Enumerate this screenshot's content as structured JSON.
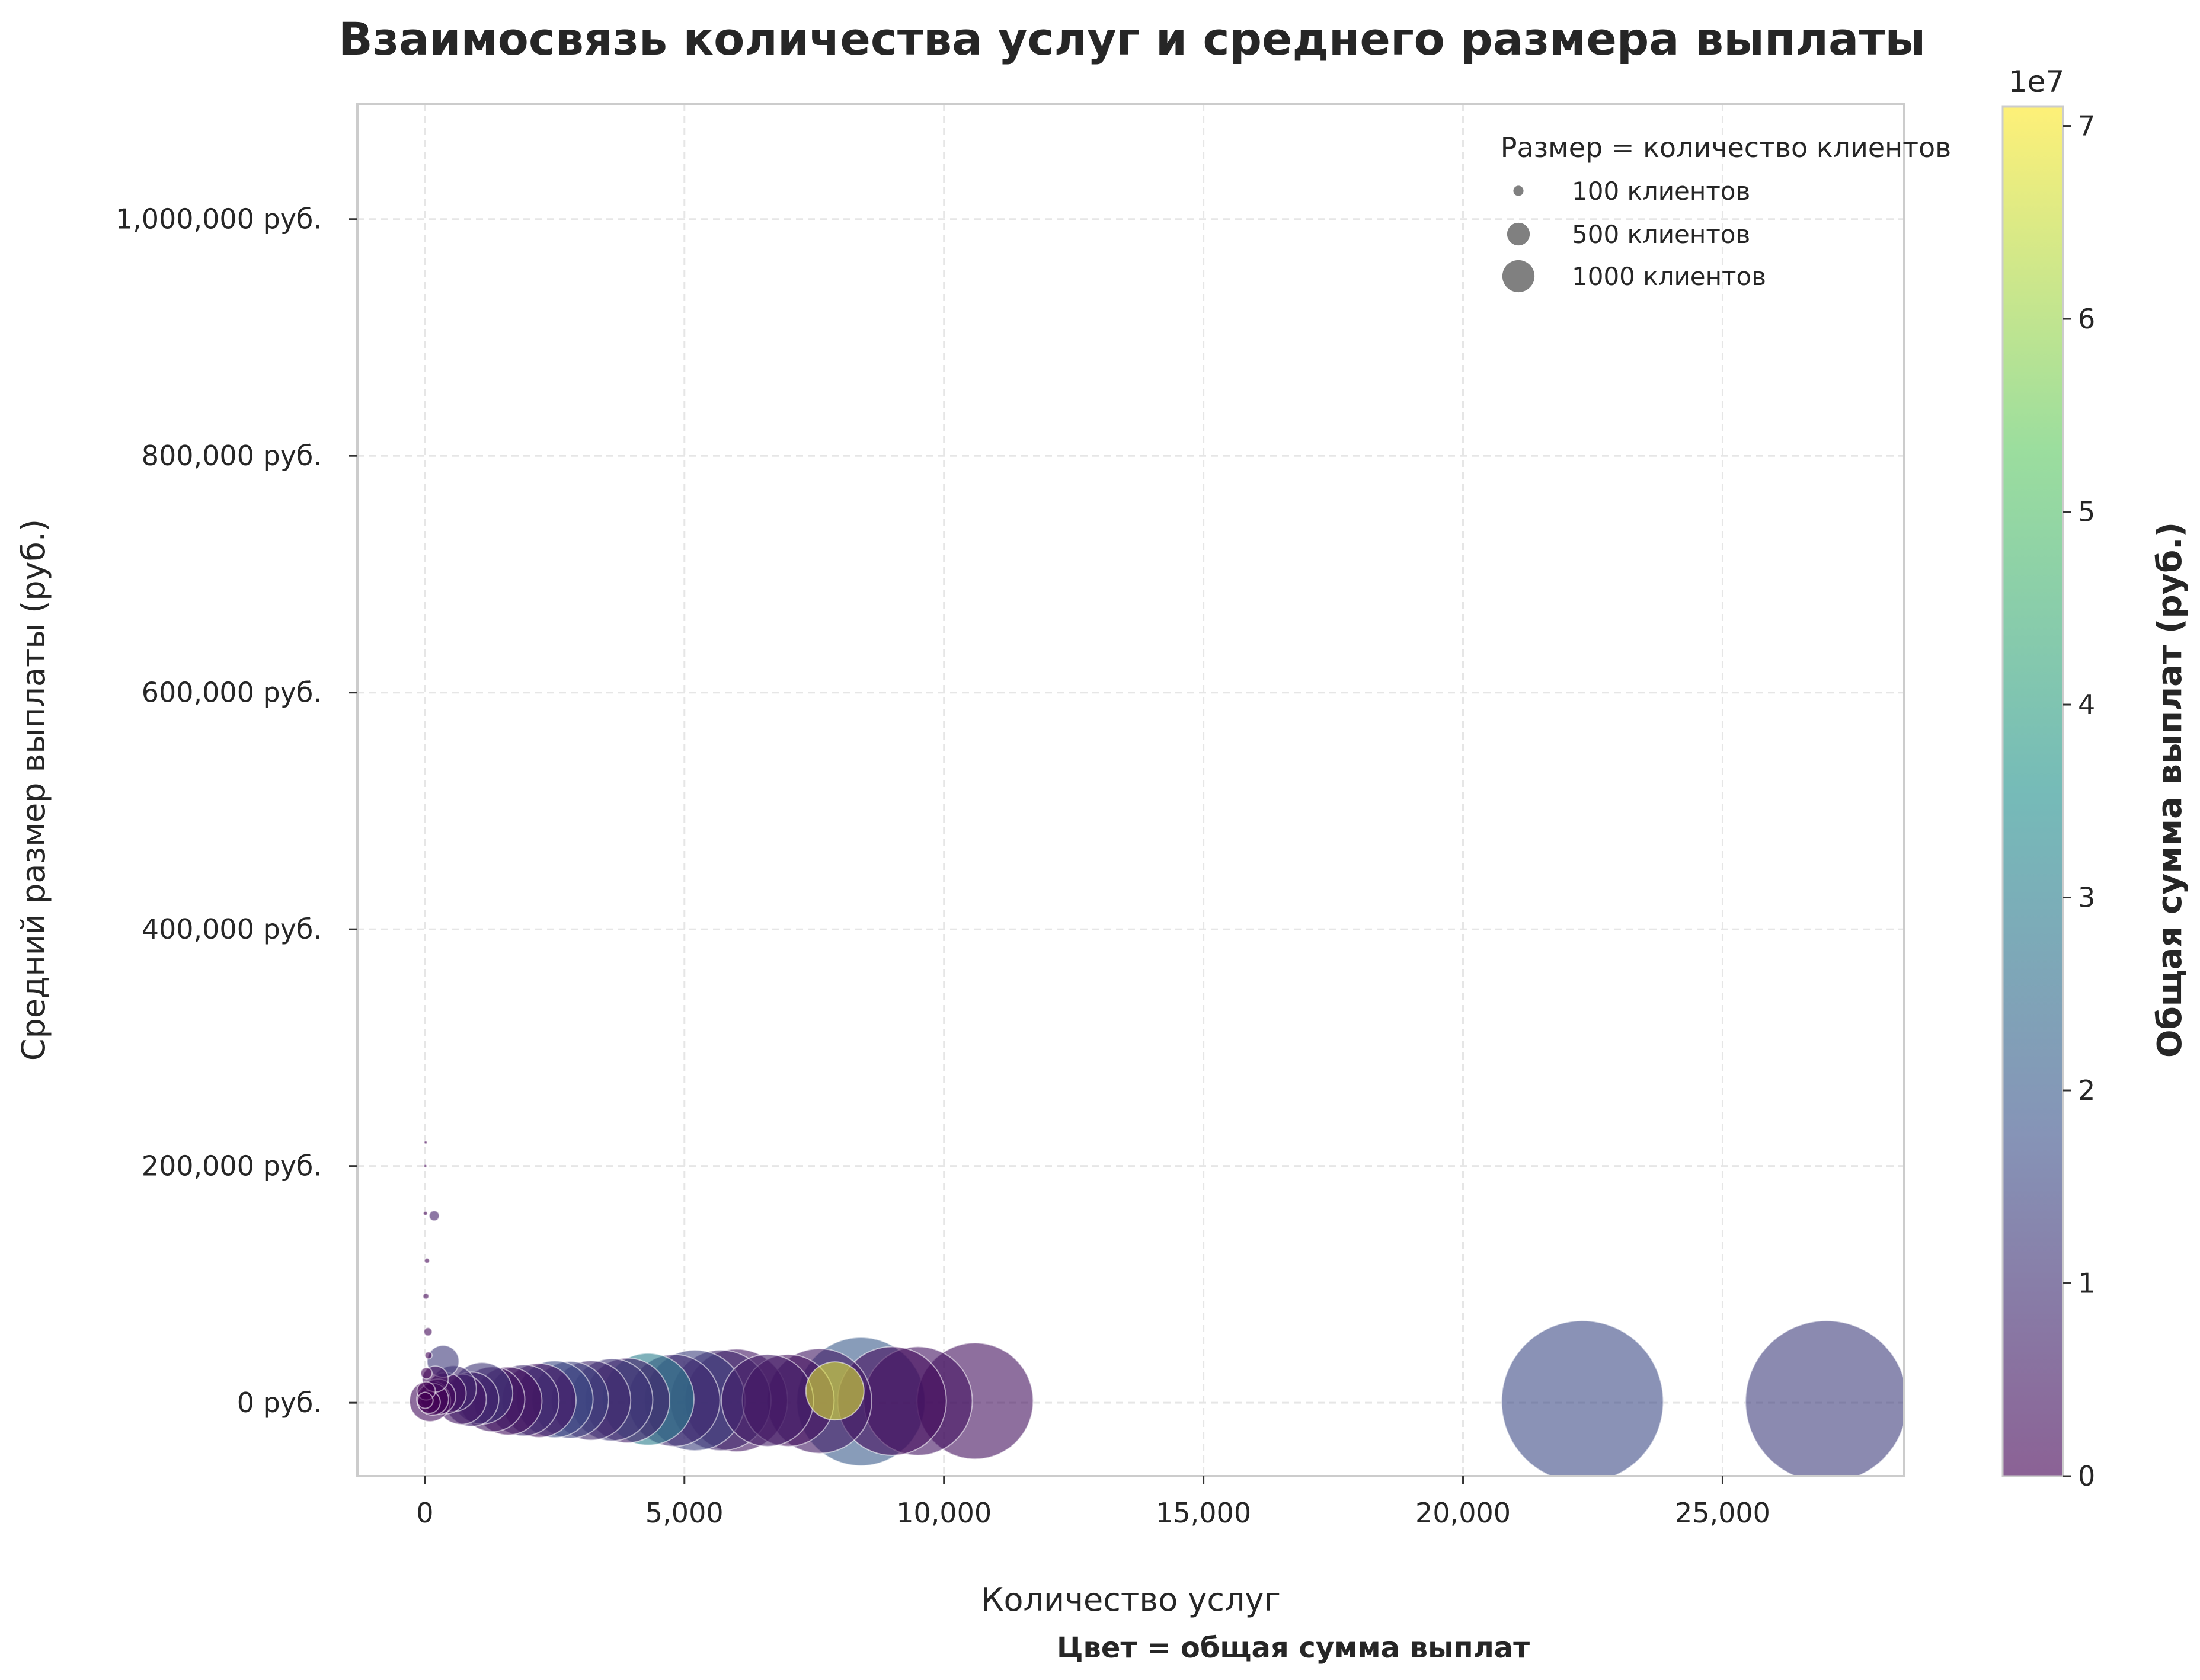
{
  "chart_data": {
    "type": "scatter",
    "title": "Взаимосвязь количества услуг и среднего размера выплаты",
    "xlabel": "Количество услуг",
    "ylabel": "Средний размер выплаты (руб.)",
    "note": "Цвет = общая сумма выплат",
    "xlim": [
      -1300,
      28500
    ],
    "ylim": [
      -62000,
      1097000
    ],
    "x_ticks": [
      0,
      5000,
      10000,
      15000,
      20000,
      25000
    ],
    "x_tick_labels": [
      "0",
      "5,000",
      "10,000",
      "15,000",
      "20,000",
      "25,000"
    ],
    "y_ticks": [
      0,
      200000,
      400000,
      600000,
      800000,
      1000000
    ],
    "y_tick_labels": [
      "0 руб.",
      "200,000 руб.",
      "400,000 руб.",
      "600,000 руб.",
      "800,000 руб.",
      "1,000,000 руб."
    ],
    "grid": true,
    "legend": {
      "title": "Размер = количество клиентов",
      "placement": "top-right",
      "entries": [
        {
          "label": "100 клиентов",
          "clients": 100
        },
        {
          "label": "500 клиентов",
          "clients": 500
        },
        {
          "label": "1000 клиентов",
          "clients": 1000
        }
      ]
    },
    "colorbar": {
      "label": "Общая сумма выплат (руб.)",
      "offset_label": "1e7",
      "range": [
        0,
        71000000
      ],
      "ticks": [
        0,
        1,
        2,
        3,
        4,
        5,
        6,
        7
      ],
      "colormap": "viridis",
      "colors": [
        "#440154",
        "#3b528b",
        "#21918c",
        "#5ec962",
        "#fde725"
      ]
    },
    "points": [
      {
        "x": 27000,
        "y": 1000,
        "clients": 3100,
        "total": 13000000
      },
      {
        "x": 22300,
        "y": 1000,
        "clients": 3100,
        "total": 16000000
      },
      {
        "x": 10600,
        "y": 1500,
        "clients": 1600,
        "total": 3000000
      },
      {
        "x": 9500,
        "y": 1500,
        "clients": 1400,
        "total": 4000000
      },
      {
        "x": 9000,
        "y": 1500,
        "clients": 1400,
        "total": 2500000
      },
      {
        "x": 8400,
        "y": 1000,
        "clients": 1950,
        "total": 20000000
      },
      {
        "x": 7900,
        "y": 10000,
        "clients": 400,
        "total": 67000000
      },
      {
        "x": 7600,
        "y": 1500,
        "clients": 1300,
        "total": 5000000
      },
      {
        "x": 7000,
        "y": 2000,
        "clients": 1000,
        "total": 3000000
      },
      {
        "x": 6600,
        "y": 2000,
        "clients": 1000,
        "total": 5500000
      },
      {
        "x": 6000,
        "y": 2000,
        "clients": 1250,
        "total": 4500000
      },
      {
        "x": 5700,
        "y": 2000,
        "clients": 1200,
        "total": 8000000
      },
      {
        "x": 5200,
        "y": 2000,
        "clients": 1200,
        "total": 14000000
      },
      {
        "x": 4800,
        "y": 2000,
        "clients": 1000,
        "total": 9000000
      },
      {
        "x": 4300,
        "y": 3000,
        "clients": 1000,
        "total": 30000000
      },
      {
        "x": 3900,
        "y": 2000,
        "clients": 850,
        "total": 6000000
      },
      {
        "x": 3600,
        "y": 2500,
        "clients": 800,
        "total": 11000000
      },
      {
        "x": 3200,
        "y": 2000,
        "clients": 750,
        "total": 8000000
      },
      {
        "x": 2800,
        "y": 2500,
        "clients": 700,
        "total": 14000000
      },
      {
        "x": 2500,
        "y": 3000,
        "clients": 700,
        "total": 16000000
      },
      {
        "x": 2200,
        "y": 2000,
        "clients": 650,
        "total": 4000000
      },
      {
        "x": 1900,
        "y": 2000,
        "clients": 600,
        "total": 9000000
      },
      {
        "x": 1600,
        "y": 1500,
        "clients": 550,
        "total": 3000000
      },
      {
        "x": 1300,
        "y": 3000,
        "clients": 500,
        "total": 5000000
      },
      {
        "x": 1100,
        "y": 8000,
        "clients": 450,
        "total": 11000000
      },
      {
        "x": 900,
        "y": 3000,
        "clients": 350,
        "total": 7000000
      },
      {
        "x": 700,
        "y": 3000,
        "clients": 300,
        "total": 4500000
      },
      {
        "x": 550,
        "y": 12000,
        "clients": 250,
        "total": 8000000
      },
      {
        "x": 400,
        "y": 8000,
        "clients": 200,
        "total": 3000000
      },
      {
        "x": 350,
        "y": 35000,
        "clients": 120,
        "total": 12000000
      },
      {
        "x": 250,
        "y": 5000,
        "clients": 150,
        "total": 2000000
      },
      {
        "x": 200,
        "y": 20000,
        "clients": 80,
        "total": 3000000
      },
      {
        "x": 150,
        "y": 3000,
        "clients": 120,
        "total": 1000000
      },
      {
        "x": 100,
        "y": 1500,
        "clients": 200,
        "total": 2500000
      },
      {
        "x": 60,
        "y": 60000,
        "clients": 8,
        "total": 1500000
      },
      {
        "x": 30,
        "y": 25000,
        "clients": 15,
        "total": 800000
      },
      {
        "x": 180,
        "y": 158000,
        "clients": 12,
        "total": 6000000
      },
      {
        "x": 20,
        "y": 90000,
        "clients": 4,
        "total": 1000000
      },
      {
        "x": 10,
        "y": 160000,
        "clients": 2,
        "total": 900000
      },
      {
        "x": 8,
        "y": 200000,
        "clients": 1,
        "total": 500000
      },
      {
        "x": 15,
        "y": 220000,
        "clients": 1,
        "total": 700000
      },
      {
        "x": 40,
        "y": 120000,
        "clients": 3,
        "total": 800000
      },
      {
        "x": 70,
        "y": 40000,
        "clients": 6,
        "total": 500000
      },
      {
        "x": 25,
        "y": 10000,
        "clients": 40,
        "total": 200000
      },
      {
        "x": 5,
        "y": 2000,
        "clients": 30,
        "total": 100000
      },
      {
        "x": 80,
        "y": 500,
        "clients": 60,
        "total": 300000
      }
    ]
  }
}
